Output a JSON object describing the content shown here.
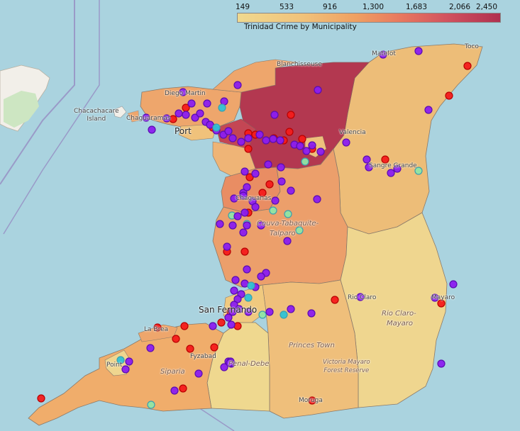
{
  "legend": {
    "title": "Trinidad Crime by Municipality",
    "ticks": [
      "149",
      "533",
      "916",
      "1,300",
      "1,683",
      "2,066",
      "2,450"
    ]
  },
  "map": {
    "water_color": "#aad3df",
    "land_labels": {
      "chacachacare": "Chacachacare\nIsland",
      "chaguaramas": "Chaguaramas",
      "diego_martin": "Diego Martin",
      "port_of_spain": "Port",
      "blanchisseuse": "Blanchisseuse",
      "matelot": "Matelot",
      "toco": "Toco",
      "valencia": "Valencia",
      "sangre_grande": "Sangre Grande",
      "chaguanas": "Chaguanas",
      "couva_tabaquite": "Couva-Tabaquite-",
      "talparo": "Talparo",
      "rio_claro_town": "Rio Claro",
      "mayaro": "Mayaro",
      "rio_claro_mayaro": "Rio Claro-",
      "rio_claro_mayaro2": "Mayaro",
      "san_fernando": "San Fernando",
      "la_brea": "La Brea",
      "fyzabad": "Fyzabad",
      "point_fortin": "Point",
      "siparia": "Siparia",
      "penal_debe": "Penal-Debe",
      "princes_town": "Princes Town",
      "victoria_mayaro": "Victoria Mayaro\nForest Reserve",
      "moruga": "Moruga"
    },
    "municipality_colors": {
      "sangre_grande": "#edbd78",
      "tunapuna_piarco": "#b33850",
      "diego_martin": "#eea66c",
      "port_of_spain": "#f0c27b",
      "san_juan_laventille": "#c44654",
      "arima": "#eec07c",
      "chaguanas": "#e98d63",
      "couva_tabaquite_talparo": "#ec9f6b",
      "rio_claro_mayaro": "#efd68f",
      "princes_town": "#efbf7b",
      "san_fernando": "#f0c97f",
      "penal_debe": "#efd88f",
      "siparia": "#f0ad6b",
      "point_fortin": "#efd68f"
    },
    "marker_colors": {
      "violet": "#8b1cf0",
      "red": "#f41b1b",
      "cyan": "#2ec3d6",
      "green": "#8fe6a5"
    }
  }
}
